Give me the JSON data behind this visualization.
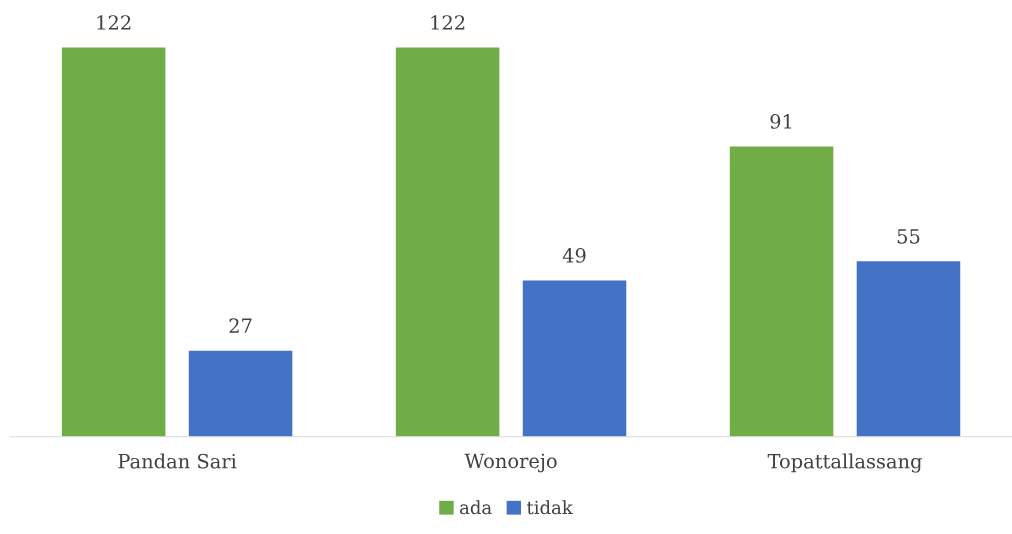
{
  "chart_data": {
    "type": "bar",
    "categories": [
      "Pandan Sari",
      "Wonorejo",
      "Topattallassang"
    ],
    "series": [
      {
        "name": "ada",
        "color": "#70ad47",
        "values": [
          122,
          122,
          91
        ]
      },
      {
        "name": "tidak",
        "color": "#4472c4",
        "values": [
          27,
          49,
          55
        ]
      }
    ],
    "data_labels": true,
    "legend": "bottom",
    "grid": false
  }
}
